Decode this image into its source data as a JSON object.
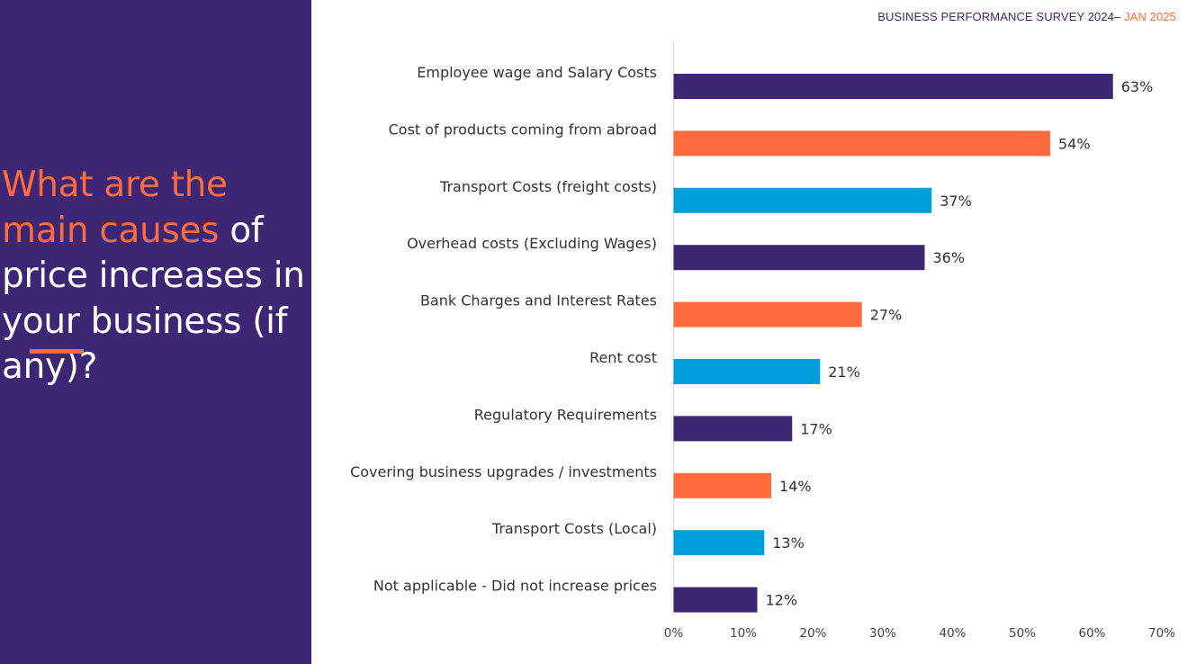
{
  "panel": {
    "question_highlight_1": "What are the main causes",
    "question_rest": " of price increases in your business (if any)?"
  },
  "header": {
    "survey": "BUSINESS PERFORMANCE SURVEY 2024– ",
    "date": "JAN 2025"
  },
  "colors": {
    "panel": "#3d2673",
    "accent": "#ff6b3d",
    "series_cycle": [
      "#3d2673",
      "#ff6b3d",
      "#009fdc"
    ]
  },
  "chart_data": {
    "type": "bar",
    "orientation": "horizontal",
    "categories": [
      "Employee wage and Salary Costs",
      "Cost of products coming from abroad",
      "Transport Costs (freight costs)",
      "Overhead costs (Excluding Wages)",
      "Bank Charges and Interest Rates",
      "Rent cost",
      "Regulatory Requirements",
      "Covering business upgrades / investments",
      "Transport Costs (Local)",
      "Not applicable - Did not increase prices"
    ],
    "values": [
      63,
      54,
      37,
      36,
      27,
      21,
      17,
      14,
      13,
      12
    ],
    "value_labels": [
      "63%",
      "54%",
      "37%",
      "36%",
      "27%",
      "21%",
      "17%",
      "14%",
      "13%",
      "12%"
    ],
    "xlim": [
      0,
      70
    ],
    "xticks": [
      "0%",
      "10%",
      "20%",
      "30%",
      "40%",
      "50%",
      "60%",
      "70%"
    ],
    "grid": false
  }
}
